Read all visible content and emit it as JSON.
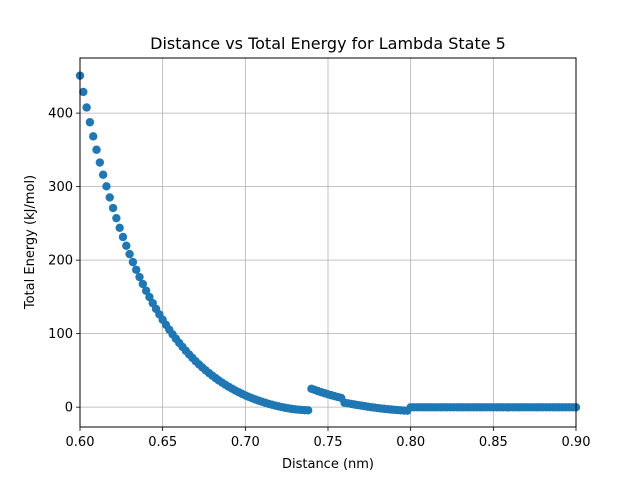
{
  "chart_data": {
    "type": "scatter",
    "title": "Distance vs Total Energy for Lambda State 5",
    "xlabel": "Distance (nm)",
    "ylabel": "Total Energy (kJ/mol)",
    "xlim": [
      0.6,
      0.9
    ],
    "ylim": [
      -27,
      475
    ],
    "xticks": [
      0.6,
      0.65,
      0.7,
      0.75,
      0.8,
      0.85,
      0.9
    ],
    "xtick_labels": [
      "0.60",
      "0.65",
      "0.70",
      "0.75",
      "0.80",
      "0.85",
      "0.90"
    ],
    "yticks": [
      0,
      100,
      200,
      300,
      400
    ],
    "ytick_labels": [
      "0",
      "100",
      "200",
      "300",
      "400"
    ],
    "grid": true,
    "marker": "circle",
    "color": "#1f77b4",
    "series": [
      {
        "x": [
          0.6,
          0.602,
          0.604,
          0.606,
          0.608,
          0.61,
          0.612,
          0.614,
          0.616,
          0.618,
          0.62,
          0.622,
          0.624,
          0.626,
          0.628,
          0.63,
          0.632,
          0.634,
          0.636,
          0.638,
          0.64,
          0.642,
          0.644,
          0.646,
          0.648,
          0.65,
          0.652,
          0.654,
          0.656,
          0.658,
          0.66,
          0.662,
          0.664,
          0.666,
          0.668,
          0.67,
          0.672,
          0.674,
          0.676,
          0.678,
          0.68,
          0.682,
          0.684,
          0.686,
          0.688,
          0.69,
          0.692,
          0.694,
          0.696,
          0.698,
          0.7,
          0.702,
          0.704,
          0.706,
          0.708,
          0.71,
          0.712,
          0.714,
          0.716,
          0.718,
          0.72,
          0.722,
          0.724,
          0.726,
          0.728,
          0.73,
          0.732,
          0.734,
          0.736,
          0.738,
          0.74,
          0.742,
          0.744,
          0.746,
          0.748,
          0.75,
          0.752,
          0.754,
          0.756,
          0.758,
          0.76,
          0.762,
          0.764,
          0.766,
          0.768,
          0.77,
          0.772,
          0.774,
          0.776,
          0.778,
          0.78,
          0.782,
          0.784,
          0.786,
          0.788,
          0.79,
          0.792,
          0.794,
          0.796,
          0.798,
          0.8,
          0.802,
          0.804,
          0.806,
          0.808,
          0.81,
          0.812,
          0.814,
          0.816,
          0.818,
          0.82,
          0.822,
          0.824,
          0.826,
          0.828,
          0.83,
          0.832,
          0.834,
          0.836,
          0.838,
          0.84,
          0.842,
          0.844,
          0.846,
          0.848,
          0.85,
          0.852,
          0.854,
          0.856,
          0.858,
          0.86,
          0.862,
          0.864,
          0.866,
          0.868,
          0.87,
          0.872,
          0.874,
          0.876,
          0.878,
          0.88,
          0.882,
          0.884,
          0.886,
          0.888,
          0.89,
          0.892,
          0.894,
          0.896,
          0.898,
          0.9
        ],
        "y": [
          451.0,
          428.8,
          407.7,
          387.6,
          368.4,
          350.2,
          332.8,
          316.2,
          300.4,
          285.3,
          270.9,
          257.1,
          244.0,
          231.5,
          219.6,
          208.2,
          197.3,
          186.9,
          177.0,
          167.5,
          158.4,
          149.8,
          141.5,
          133.6,
          126.1,
          118.9,
          112.0,
          105.4,
          99.1,
          93.1,
          87.4,
          81.9,
          76.7,
          71.7,
          67.0,
          62.4,
          58.1,
          54.0,
          50.1,
          46.4,
          42.9,
          39.5,
          36.3,
          33.3,
          30.4,
          27.7,
          25.1,
          22.6,
          20.3,
          18.1,
          16.0,
          14.1,
          12.2,
          10.5,
          8.9,
          7.4,
          6.0,
          4.6,
          3.4,
          2.2,
          1.1,
          0.1,
          -0.8,
          -1.6,
          -2.3,
          -2.9,
          -3.4,
          -3.8,
          -4.1,
          -4.3,
          25.0,
          23.4,
          21.8,
          20.3,
          18.9,
          17.5,
          16.2,
          14.9,
          13.7,
          12.5,
          6.0,
          5.2,
          4.4,
          3.6,
          2.8,
          2.1,
          1.4,
          0.7,
          0.0,
          -0.6,
          -1.2,
          -1.8,
          -2.3,
          -2.8,
          -3.2,
          -3.6,
          -4.0,
          -4.3,
          -4.6,
          -4.8,
          -0.2,
          -0.2,
          -0.2,
          -0.2,
          -0.2,
          -0.2,
          -0.2,
          -0.2,
          -0.2,
          -0.2,
          -0.2,
          -0.2,
          -0.2,
          -0.2,
          -0.2,
          -0.2,
          -0.2,
          -0.2,
          -0.2,
          -0.2,
          -0.2,
          -0.2,
          -0.2,
          -0.2,
          -0.2,
          -0.2,
          -0.2,
          -0.2,
          -0.2,
          -0.2,
          -0.2,
          -0.2,
          -0.2,
          -0.2,
          -0.2,
          -0.2,
          -0.2,
          -0.2,
          -0.2,
          -0.2,
          -0.2,
          -0.2,
          -0.2,
          -0.2,
          -0.2,
          -0.2,
          -0.2,
          -0.2,
          -0.2,
          -0.2,
          -0.2
        ]
      }
    ]
  }
}
